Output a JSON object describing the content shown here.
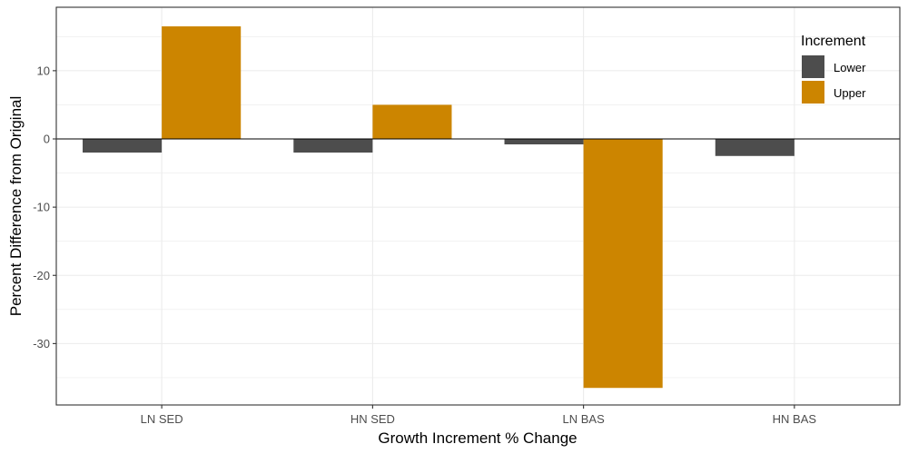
{
  "chart_data": {
    "type": "bar",
    "xlabel": "Growth Increment % Change",
    "ylabel": "Percent Difference from Original",
    "categories": [
      "LN SED",
      "HN SED",
      "LN BAS",
      "HN BAS"
    ],
    "series": [
      {
        "name": "Lower",
        "values": [
          -2.0,
          -2.0,
          -0.8,
          -2.5
        ],
        "color": "#4d4d4d"
      },
      {
        "name": "Upper",
        "values": [
          16.5,
          5.0,
          -36.5,
          null
        ],
        "color": "#cc8500"
      }
    ],
    "ylim": [
      -39,
      19.3
    ],
    "yticks": [
      -30,
      -20,
      -10,
      0,
      10
    ],
    "ytick_labels": [
      "-30",
      "-20",
      "-10",
      "0",
      "10"
    ],
    "legend": {
      "title": "Increment",
      "position": "top-right"
    },
    "grid": true
  }
}
